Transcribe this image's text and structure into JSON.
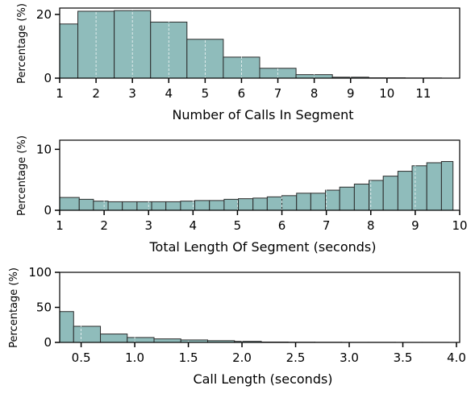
{
  "style": {
    "bar_fill": "#8fbcbb",
    "bar_stroke": "#2b2b2b",
    "grid_color": "#ffffff",
    "axis_color": "#000000"
  },
  "chart_data": [
    {
      "type": "bar",
      "xlabel": "Number of Calls In Segment",
      "ylabel": "Percentage (%)",
      "xlim": [
        1,
        12
      ],
      "ylim": [
        0,
        22
      ],
      "xticks": [
        1,
        2,
        3,
        4,
        5,
        6,
        7,
        8,
        9,
        10,
        11
      ],
      "xtick_labels": [
        "1",
        "2",
        "3",
        "4",
        "5",
        "6",
        "7",
        "8",
        "9",
        "10",
        "11"
      ],
      "yticks": [
        0,
        20
      ],
      "ytick_labels": [
        "0",
        "20"
      ],
      "grid": "x, dashed white",
      "bins": [
        {
          "start": 1.0,
          "end": 1.5,
          "value": 17.0
        },
        {
          "start": 1.5,
          "end": 2.5,
          "value": 21.0
        },
        {
          "start": 2.5,
          "end": 3.5,
          "value": 21.2
        },
        {
          "start": 3.5,
          "end": 4.5,
          "value": 17.6
        },
        {
          "start": 4.5,
          "end": 5.5,
          "value": 12.2
        },
        {
          "start": 5.5,
          "end": 6.5,
          "value": 6.6
        },
        {
          "start": 6.5,
          "end": 7.5,
          "value": 3.1
        },
        {
          "start": 7.5,
          "end": 8.5,
          "value": 1.1
        },
        {
          "start": 8.5,
          "end": 9.5,
          "value": 0.3
        },
        {
          "start": 9.5,
          "end": 10.5,
          "value": 0.1
        },
        {
          "start": 10.5,
          "end": 11.5,
          "value": 0.05
        }
      ]
    },
    {
      "type": "bar",
      "xlabel": "Total Length Of Segment (seconds)",
      "ylabel": "Percentage (%)",
      "xlim": [
        1,
        10
      ],
      "ylim": [
        0,
        11.5
      ],
      "xticks": [
        1,
        2,
        3,
        4,
        5,
        6,
        7,
        8,
        9,
        10
      ],
      "xtick_labels": [
        "1",
        "2",
        "3",
        "4",
        "5",
        "6",
        "7",
        "8",
        "9",
        "10"
      ],
      "yticks": [
        0,
        10
      ],
      "ytick_labels": [
        "0",
        "10"
      ],
      "grid": "x, dashed white",
      "bins": [
        {
          "start": 1.0,
          "end": 1.44,
          "value": 2.1
        },
        {
          "start": 1.44,
          "end": 1.76,
          "value": 1.8
        },
        {
          "start": 1.76,
          "end": 2.09,
          "value": 1.5
        },
        {
          "start": 2.09,
          "end": 2.41,
          "value": 1.4
        },
        {
          "start": 2.41,
          "end": 2.74,
          "value": 1.4
        },
        {
          "start": 2.74,
          "end": 3.07,
          "value": 1.4
        },
        {
          "start": 3.07,
          "end": 3.39,
          "value": 1.4
        },
        {
          "start": 3.39,
          "end": 3.72,
          "value": 1.4
        },
        {
          "start": 3.72,
          "end": 4.04,
          "value": 1.5
        },
        {
          "start": 4.04,
          "end": 4.37,
          "value": 1.6
        },
        {
          "start": 4.37,
          "end": 4.7,
          "value": 1.6
        },
        {
          "start": 4.7,
          "end": 5.02,
          "value": 1.8
        },
        {
          "start": 5.02,
          "end": 5.35,
          "value": 1.9
        },
        {
          "start": 5.35,
          "end": 5.67,
          "value": 2.0
        },
        {
          "start": 5.67,
          "end": 6.0,
          "value": 2.2
        },
        {
          "start": 6.0,
          "end": 6.33,
          "value": 2.4
        },
        {
          "start": 6.33,
          "end": 6.65,
          "value": 2.8
        },
        {
          "start": 6.65,
          "end": 6.98,
          "value": 2.8
        },
        {
          "start": 6.98,
          "end": 7.3,
          "value": 3.3
        },
        {
          "start": 7.3,
          "end": 7.63,
          "value": 3.8
        },
        {
          "start": 7.63,
          "end": 7.96,
          "value": 4.3
        },
        {
          "start": 7.96,
          "end": 8.28,
          "value": 4.9
        },
        {
          "start": 8.28,
          "end": 8.61,
          "value": 5.6
        },
        {
          "start": 8.61,
          "end": 8.93,
          "value": 6.4
        },
        {
          "start": 8.93,
          "end": 9.26,
          "value": 7.3
        },
        {
          "start": 9.26,
          "end": 9.59,
          "value": 7.8
        },
        {
          "start": 9.59,
          "end": 9.85,
          "value": 8.0
        }
      ]
    },
    {
      "type": "bar",
      "xlabel": "Call Length (seconds)",
      "ylabel": "Percentage (%)",
      "xlim": [
        0.3,
        4.03
      ],
      "ylim": [
        0,
        100
      ],
      "xticks": [
        0.5,
        1.0,
        1.5,
        2.0,
        2.5,
        3.0,
        3.5,
        4.0
      ],
      "xtick_labels": [
        "0.5",
        "1.0",
        "1.5",
        "2.0",
        "2.5",
        "3.0",
        "3.5",
        "4.0"
      ],
      "yticks": [
        0,
        50,
        100
      ],
      "ytick_labels": [
        "0",
        "50",
        "100"
      ],
      "grid": "x, dashed white",
      "bins": [
        {
          "start": 0.3,
          "end": 0.43,
          "value": 44
        },
        {
          "start": 0.43,
          "end": 0.68,
          "value": 23
        },
        {
          "start": 0.68,
          "end": 0.93,
          "value": 12
        },
        {
          "start": 0.93,
          "end": 1.18,
          "value": 7
        },
        {
          "start": 1.18,
          "end": 1.43,
          "value": 5
        },
        {
          "start": 1.43,
          "end": 1.68,
          "value": 3.5
        },
        {
          "start": 1.68,
          "end": 1.93,
          "value": 2.5
        },
        {
          "start": 1.93,
          "end": 2.18,
          "value": 1.5
        },
        {
          "start": 2.18,
          "end": 2.43,
          "value": 0.5
        },
        {
          "start": 2.43,
          "end": 2.68,
          "value": 0.3
        },
        {
          "start": 2.68,
          "end": 2.93,
          "value": 0.2
        },
        {
          "start": 2.93,
          "end": 3.18,
          "value": 0.1
        },
        {
          "start": 3.18,
          "end": 3.43,
          "value": 0.1
        },
        {
          "start": 3.43,
          "end": 3.68,
          "value": 0.05
        },
        {
          "start": 3.68,
          "end": 3.93,
          "value": 0.05
        }
      ]
    }
  ]
}
